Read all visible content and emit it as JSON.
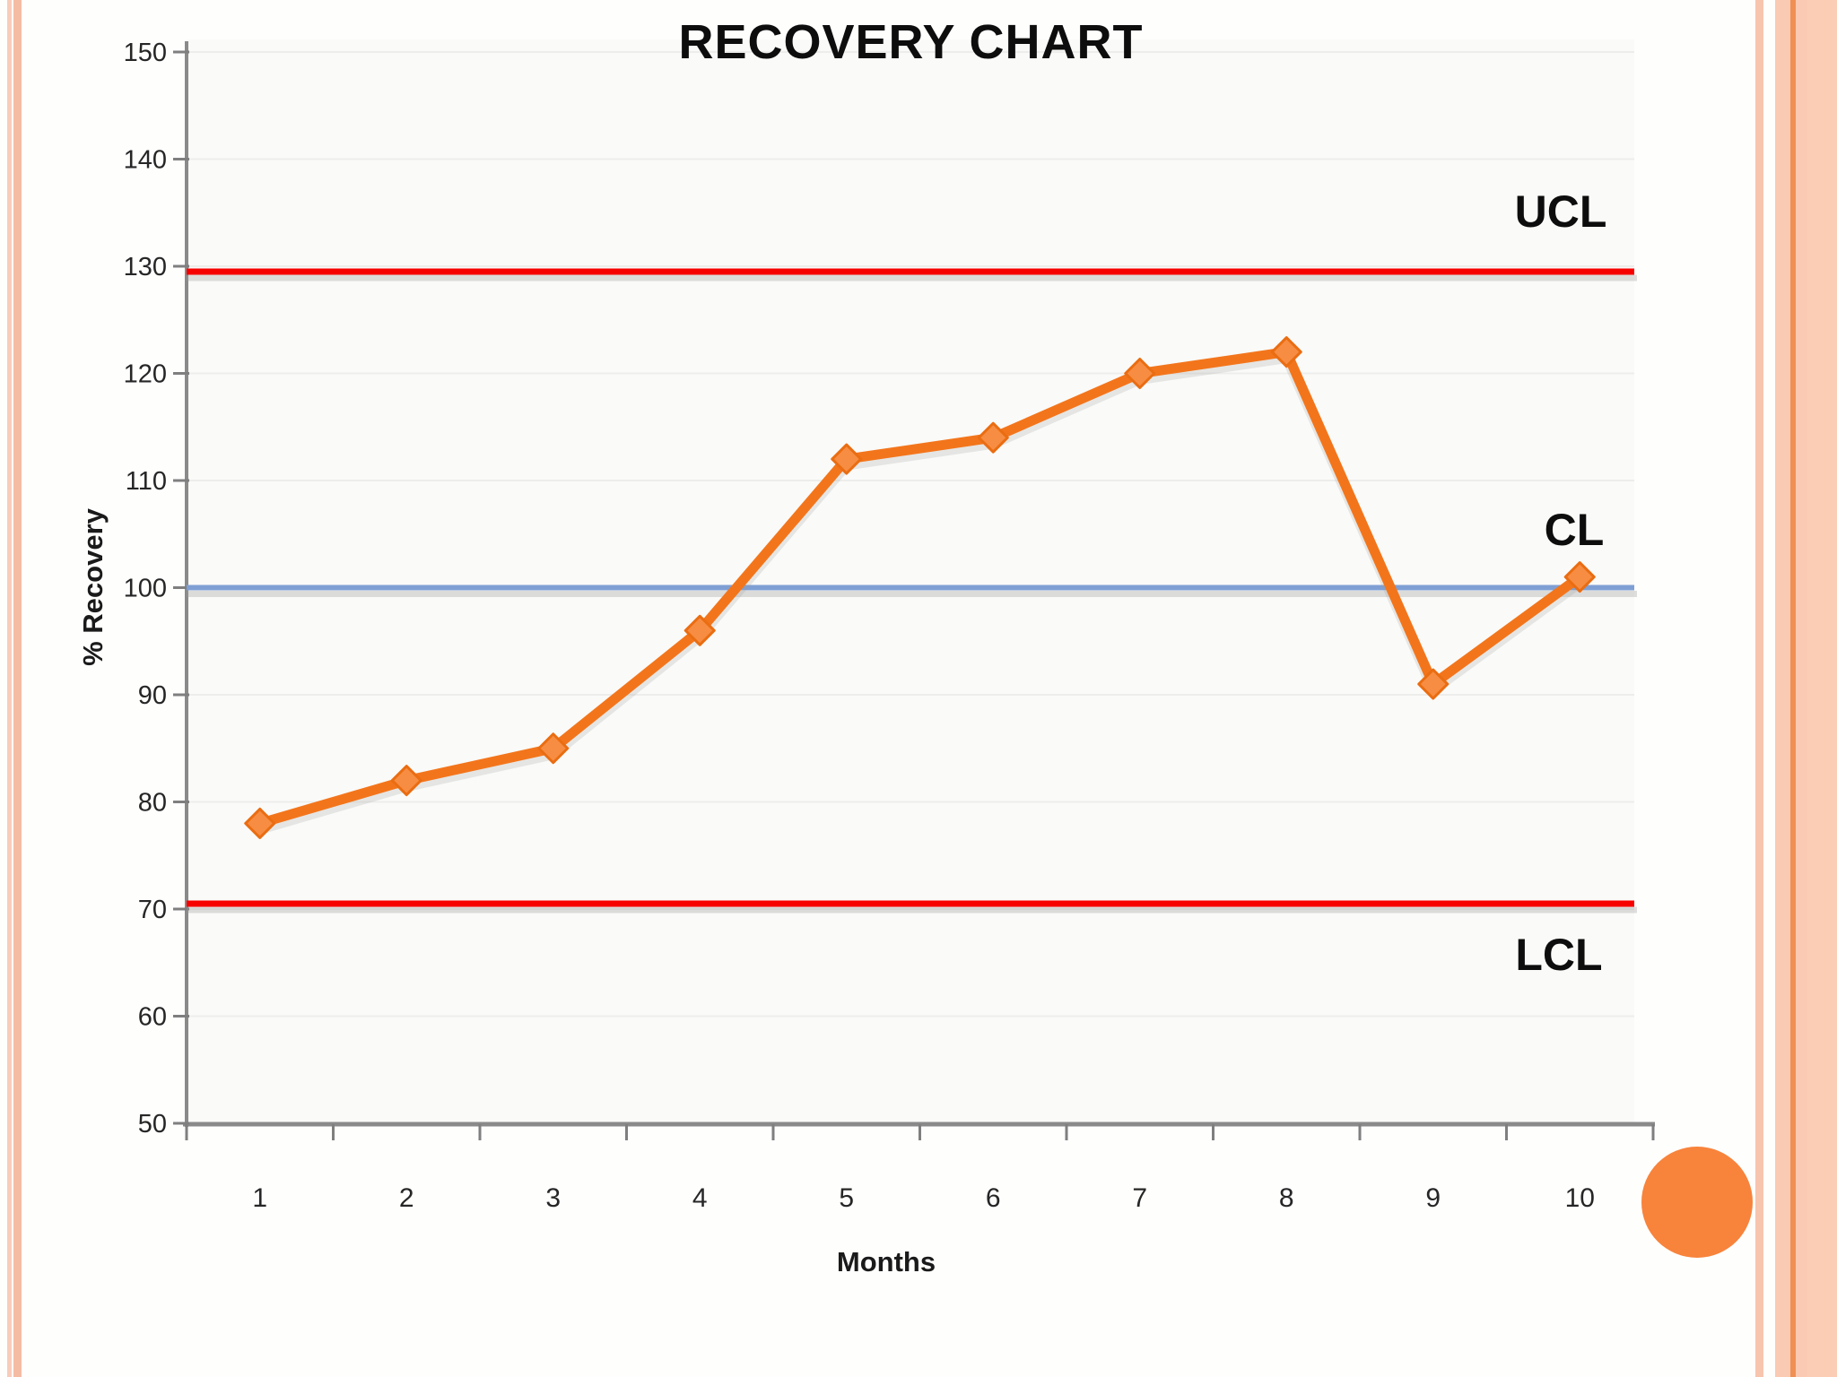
{
  "slide": {
    "background": "#fefefd",
    "border_stripe_color_light": "#f8ccba",
    "border_stripe_color_medium": "#f5bca4",
    "border_band_color": "#fbcab2",
    "border_accent_line_color": "#ef9055",
    "corner_circle_color": "#f8833b"
  },
  "chart_data": {
    "type": "line",
    "title": "RECOVERY CHART",
    "xlabel": "Months",
    "ylabel": "% Recovery",
    "categories": [
      1,
      2,
      3,
      4,
      5,
      6,
      7,
      8,
      9,
      10
    ],
    "series": [
      {
        "name": "% Recovery",
        "values": [
          78,
          82,
          85,
          96,
          112,
          114,
          120,
          122,
          91,
          101
        ],
        "color": "#f3751b",
        "marker": "diamond",
        "marker_fill": "#f78d42",
        "marker_stroke": "#ea6d12"
      }
    ],
    "control_lines": [
      {
        "label": "UCL",
        "value": 129.5,
        "color": "#f70000"
      },
      {
        "label": "CL",
        "value": 100,
        "color": "#7f9fd4"
      },
      {
        "label": "LCL",
        "value": 70.5,
        "color": "#f70000"
      }
    ],
    "ylim": [
      50,
      150
    ],
    "y_ticks": [
      50,
      60,
      70,
      80,
      90,
      100,
      110,
      120,
      130,
      140,
      150
    ],
    "grid": true,
    "legend": "none",
    "plot_background": "#fafaf8",
    "gridline_color": "#ededeb",
    "axis_color": "#8a8a8a",
    "tick_label_color": "#262626"
  }
}
